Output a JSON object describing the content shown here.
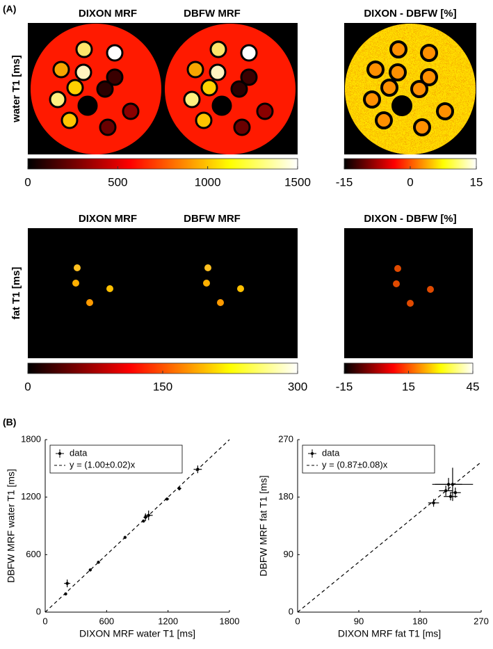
{
  "panel_a": {
    "label": "(A)",
    "columns": [
      "DIXON MRF",
      "DBFW MRF",
      "DIXON - DBFW [%]"
    ],
    "rows": [
      {
        "label": "water T1 [ms]",
        "colorbar": {
          "lim": [
            0,
            1500
          ],
          "ticks": [
            0,
            500,
            1000,
            1500
          ]
        },
        "diff_colorbar": {
          "lim": [
            -15,
            15
          ],
          "ticks": [
            -15,
            0,
            15
          ]
        }
      },
      {
        "label": "fat T1 [ms]",
        "colorbar": {
          "lim": [
            0,
            300
          ],
          "ticks": [
            0,
            150,
            300
          ]
        },
        "diff_colorbar": {
          "lim": [
            -15,
            45
          ],
          "ticks": [
            -15,
            15,
            45
          ]
        }
      }
    ]
  },
  "panel_b": {
    "label": "(B)"
  },
  "chart_data": [
    {
      "type": "scatter",
      "xlabel": "DIXON MRF water T1 [ms]",
      "ylabel": "DBFW  MRF water T1 [ms]",
      "xlim": [
        0,
        1800
      ],
      "ylim": [
        0,
        1800
      ],
      "xticks": [
        0,
        600,
        1200,
        1800
      ],
      "yticks": [
        0,
        600,
        1200,
        1800
      ],
      "series": [
        {
          "name": "data",
          "color": "#000000",
          "x": [
            200,
            215,
            440,
            520,
            780,
            960,
            980,
            1010,
            1190,
            1310,
            1490
          ],
          "values": [
            190,
            300,
            440,
            520,
            780,
            950,
            990,
            1010,
            1180,
            1290,
            1490
          ],
          "x_error": [
            0,
            30,
            0,
            0,
            0,
            0,
            20,
            40,
            20,
            20,
            40
          ],
          "y_error": [
            0,
            40,
            0,
            0,
            0,
            0,
            40,
            50,
            15,
            20,
            40
          ]
        }
      ],
      "fit": {
        "label": "y = (1.00±0.02)x",
        "slope": 1.0,
        "slope_error": 0.02
      }
    },
    {
      "type": "scatter",
      "xlabel": "DIXON MRF fat T1 [ms]",
      "ylabel": "DBFW  MRF fat T1 [ms]",
      "xlim": [
        0,
        270
      ],
      "ylim": [
        0,
        270
      ],
      "xticks": [
        0,
        90,
        180,
        270
      ],
      "yticks": [
        0,
        90,
        180,
        270
      ],
      "series": [
        {
          "name": "data",
          "color": "#000000",
          "x": [
            200,
            218,
            222,
            225,
            228,
            232
          ],
          "values": [
            171,
            190,
            200,
            181,
            200,
            187
          ],
          "x_error": [
            8,
            10,
            20,
            10,
            30,
            8
          ],
          "y_error": [
            6,
            8,
            10,
            6,
            26,
            8
          ]
        }
      ],
      "fit": {
        "label": "y = (0.87±0.08)x",
        "slope": 0.87,
        "slope_error": 0.08
      }
    }
  ]
}
